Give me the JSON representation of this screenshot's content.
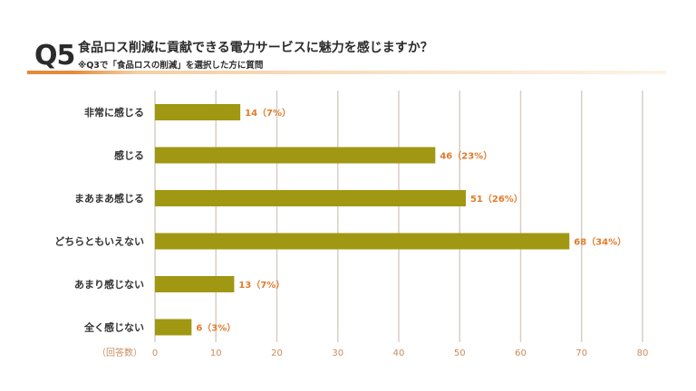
{
  "header": {
    "qnum": "Q5",
    "title": "食品ロス削減に貢献できる電力サービスに魅力を感じますか？",
    "subtitle": "※Q3で「食品ロスの削減」を選択した方に質問"
  },
  "colors": {
    "bar": "#a09712",
    "grid": "#d7cfc6",
    "value_label": "#e07b2a",
    "accent": "#e58a3a"
  },
  "chart_data": {
    "type": "bar",
    "orientation": "horizontal",
    "categories": [
      "非常に感じる",
      "感じる",
      "まあまあ感じる",
      "どちらともいえない",
      "あまり感じない",
      "全く感じない"
    ],
    "values": [
      14,
      46,
      51,
      68,
      13,
      6
    ],
    "value_labels": [
      "14（7%）",
      "46（23%）",
      "51（26%）",
      "68（34%）",
      "13（7%）",
      "6（3%）"
    ],
    "xlim": [
      0,
      80
    ],
    "xticks": [
      0,
      10,
      20,
      30,
      40,
      50,
      60,
      70,
      80
    ],
    "xunit": "（回答数）",
    "grid": true
  }
}
